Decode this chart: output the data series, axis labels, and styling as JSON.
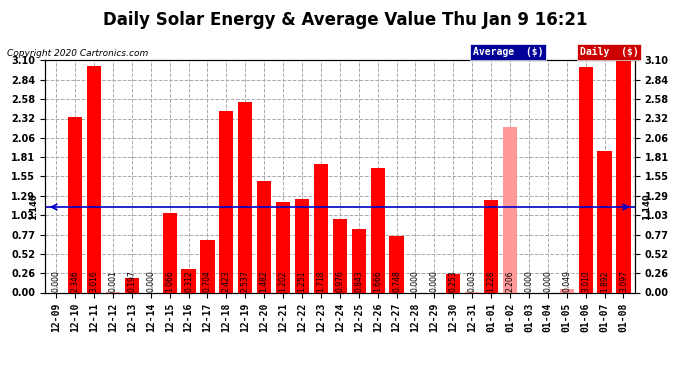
{
  "title": "Daily Solar Energy & Average Value Thu Jan 9 16:21",
  "copyright": "Copyright 2020 Cartronics.com",
  "categories": [
    "12-09",
    "12-10",
    "12-11",
    "12-12",
    "12-13",
    "12-14",
    "12-15",
    "12-16",
    "12-17",
    "12-18",
    "12-19",
    "12-20",
    "12-21",
    "12-22",
    "12-23",
    "12-24",
    "12-25",
    "12-26",
    "12-27",
    "12-28",
    "12-29",
    "12-30",
    "12-31",
    "01-01",
    "01-02",
    "01-03",
    "01-04",
    "01-05",
    "01-06",
    "01-07",
    "01-08"
  ],
  "values": [
    0.0,
    2.346,
    3.016,
    0.001,
    0.197,
    0.0,
    1.066,
    0.312,
    0.704,
    2.423,
    2.537,
    1.482,
    1.202,
    1.251,
    1.718,
    0.976,
    0.843,
    1.666,
    0.748,
    0.0,
    0.0,
    0.253,
    0.003,
    1.228,
    2.206,
    0.0,
    0.0,
    0.049,
    3.01,
    1.892,
    3.097
  ],
  "highlight_indices": [
    3,
    22,
    24,
    27
  ],
  "average_line": 1.14,
  "average_label": "1.140",
  "bar_color": "#FF0000",
  "bar_highlight_color": "#FF9999",
  "avg_line_color": "#0000CC",
  "background_color": "#FFFFFF",
  "grid_color": "#AAAAAA",
  "ylim": [
    0.0,
    3.1
  ],
  "yticks": [
    0.0,
    0.26,
    0.52,
    0.77,
    1.03,
    1.29,
    1.55,
    1.81,
    2.06,
    2.32,
    2.58,
    2.84,
    3.1
  ],
  "legend_avg_bg": "#000099",
  "legend_daily_bg": "#CC0000",
  "title_fontsize": 12,
  "tick_fontsize": 7,
  "value_fontsize": 5.5,
  "copyright_fontsize": 6.5
}
